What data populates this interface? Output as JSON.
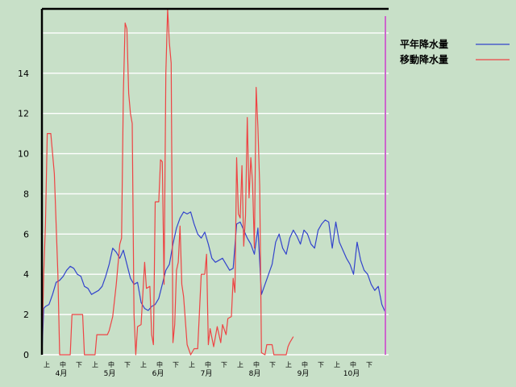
{
  "chart_data": {
    "type": "line",
    "ylim": [
      0,
      17.2
    ],
    "yticks": [
      0,
      2,
      4,
      6,
      8,
      10,
      12,
      14
    ],
    "grid": true,
    "legend_position": "top-right",
    "months": [
      "4月",
      "5月",
      "6月",
      "7月",
      "8月",
      "9月",
      "10月"
    ],
    "sub_labels": [
      "上",
      "中",
      "下"
    ],
    "colors": {
      "background": "#c8e0c8",
      "grid": "#ffffff",
      "frame": "#000000",
      "today_marker": "#cc66cc",
      "normal": "#3344cc",
      "moving": "#ee4444"
    },
    "series": [
      {
        "name": "平年降水量",
        "color": "#3344cc",
        "values": [
          [
            0,
            0
          ],
          [
            1,
            2.3
          ],
          [
            2,
            2.4
          ],
          [
            4,
            2.5
          ],
          [
            6,
            3
          ],
          [
            8,
            3.6
          ],
          [
            10,
            3.7
          ],
          [
            12,
            3.9
          ],
          [
            14,
            4.2
          ],
          [
            16,
            4.4
          ],
          [
            18,
            4.3
          ],
          [
            20,
            4
          ],
          [
            22,
            3.9
          ],
          [
            24,
            3.4
          ],
          [
            26,
            3.3
          ],
          [
            28,
            3
          ],
          [
            30,
            3.1
          ],
          [
            32,
            3.2
          ],
          [
            34,
            3.4
          ],
          [
            36,
            3.9
          ],
          [
            38,
            4.5
          ],
          [
            40,
            5.3
          ],
          [
            42,
            5.1
          ],
          [
            44,
            4.8
          ],
          [
            46,
            5.2
          ],
          [
            48,
            4.5
          ],
          [
            50,
            3.8
          ],
          [
            52,
            3.5
          ],
          [
            54,
            3.6
          ],
          [
            56,
            2.6
          ],
          [
            58,
            2.3
          ],
          [
            60,
            2.2
          ],
          [
            62,
            2.4
          ],
          [
            64,
            2.5
          ],
          [
            66,
            2.8
          ],
          [
            68,
            3.5
          ],
          [
            70,
            4.2
          ],
          [
            72,
            4.5
          ],
          [
            74,
            5.5
          ],
          [
            76,
            6.3
          ],
          [
            78,
            6.8
          ],
          [
            80,
            7.1
          ],
          [
            82,
            7
          ],
          [
            84,
            7.1
          ],
          [
            86,
            6.5
          ],
          [
            88,
            6
          ],
          [
            90,
            5.8
          ],
          [
            92,
            6.1
          ],
          [
            94,
            5.5
          ],
          [
            96,
            4.8
          ],
          [
            98,
            4.6
          ],
          [
            100,
            4.7
          ],
          [
            102,
            4.8
          ],
          [
            104,
            4.5
          ],
          [
            106,
            4.2
          ],
          [
            108,
            4.3
          ],
          [
            110,
            6.5
          ],
          [
            112,
            6.6
          ],
          [
            114,
            6.2
          ],
          [
            116,
            5.8
          ],
          [
            118,
            5.5
          ],
          [
            120,
            5
          ],
          [
            122,
            6.3
          ],
          [
            124,
            3
          ],
          [
            126,
            3.5
          ],
          [
            128,
            4
          ],
          [
            130,
            4.5
          ],
          [
            132,
            5.6
          ],
          [
            134,
            6
          ],
          [
            136,
            5.3
          ],
          [
            138,
            5
          ],
          [
            140,
            5.8
          ],
          [
            142,
            6.2
          ],
          [
            144,
            5.9
          ],
          [
            146,
            5.5
          ],
          [
            148,
            6.2
          ],
          [
            150,
            6
          ],
          [
            152,
            5.5
          ],
          [
            154,
            5.3
          ],
          [
            156,
            6.2
          ],
          [
            158,
            6.5
          ],
          [
            160,
            6.7
          ],
          [
            162,
            6.6
          ],
          [
            164,
            5.3
          ],
          [
            166,
            6.6
          ],
          [
            168,
            5.6
          ],
          [
            170,
            5.2
          ],
          [
            172,
            4.8
          ],
          [
            174,
            4.5
          ],
          [
            176,
            4
          ],
          [
            178,
            5.6
          ],
          [
            180,
            4.7
          ],
          [
            182,
            4.2
          ],
          [
            184,
            4
          ],
          [
            186,
            3.5
          ],
          [
            188,
            3.2
          ],
          [
            190,
            3.4
          ],
          [
            192,
            2.5
          ],
          [
            194,
            2.1
          ]
        ]
      },
      {
        "name": "移動降水量",
        "color": "#ee4444",
        "values": [
          [
            0,
            0
          ],
          [
            1,
            4
          ],
          [
            2,
            6.5
          ],
          [
            3,
            11
          ],
          [
            5,
            11
          ],
          [
            7,
            9
          ],
          [
            9,
            4
          ],
          [
            10,
            0
          ],
          [
            16,
            0
          ],
          [
            17,
            2
          ],
          [
            23,
            2
          ],
          [
            24,
            0
          ],
          [
            30,
            0
          ],
          [
            31,
            1
          ],
          [
            37,
            1
          ],
          [
            38,
            1.2
          ],
          [
            40,
            1.9
          ],
          [
            42,
            3.5
          ],
          [
            44,
            5.5
          ],
          [
            45,
            5.8
          ],
          [
            46,
            13
          ],
          [
            47,
            16.5
          ],
          [
            48,
            16.2
          ],
          [
            49,
            13
          ],
          [
            50,
            12
          ],
          [
            51,
            11.5
          ],
          [
            52,
            2
          ],
          [
            53,
            0
          ],
          [
            54,
            1.4
          ],
          [
            56,
            1.5
          ],
          [
            58,
            4.6
          ],
          [
            59,
            3.3
          ],
          [
            61,
            3.4
          ],
          [
            62,
            1
          ],
          [
            63,
            0.5
          ],
          [
            64,
            7.6
          ],
          [
            66,
            7.6
          ],
          [
            67,
            9.7
          ],
          [
            68,
            9.6
          ],
          [
            69,
            3.5
          ],
          [
            70,
            14
          ],
          [
            71,
            17.2
          ],
          [
            72,
            15.5
          ],
          [
            73,
            14.5
          ],
          [
            74,
            0.6
          ],
          [
            75,
            1.5
          ],
          [
            76,
            4.2
          ],
          [
            77,
            4.6
          ],
          [
            78,
            6.4
          ],
          [
            79,
            3.5
          ],
          [
            80,
            2.9
          ],
          [
            82,
            0.5
          ],
          [
            84,
            0
          ],
          [
            86,
            0.3
          ],
          [
            88,
            0.3
          ],
          [
            90,
            4
          ],
          [
            92,
            4
          ],
          [
            93,
            5
          ],
          [
            94,
            0.5
          ],
          [
            95,
            1.3
          ],
          [
            97,
            0.4
          ],
          [
            99,
            1.4
          ],
          [
            101,
            0.6
          ],
          [
            102,
            1.5
          ],
          [
            104,
            1
          ],
          [
            105,
            1.8
          ],
          [
            107,
            1.9
          ],
          [
            108,
            3.8
          ],
          [
            109,
            3.1
          ],
          [
            110,
            9.8
          ],
          [
            111,
            7
          ],
          [
            112,
            6.8
          ],
          [
            113,
            9.4
          ],
          [
            114,
            5.4
          ],
          [
            115,
            6.9
          ],
          [
            116,
            11.8
          ],
          [
            117,
            7.8
          ],
          [
            118,
            9.8
          ],
          [
            119,
            8.5
          ],
          [
            120,
            5.3
          ],
          [
            121,
            13.3
          ],
          [
            122,
            11.3
          ],
          [
            123,
            8.4
          ],
          [
            124,
            0.1
          ],
          [
            126,
            0
          ],
          [
            127,
            0.5
          ],
          [
            130,
            0.5
          ],
          [
            131,
            0
          ],
          [
            138,
            0
          ],
          [
            139,
            0.4
          ],
          [
            140,
            0.6
          ],
          [
            142,
            0.9
          ]
        ]
      }
    ],
    "x_max": 194
  }
}
